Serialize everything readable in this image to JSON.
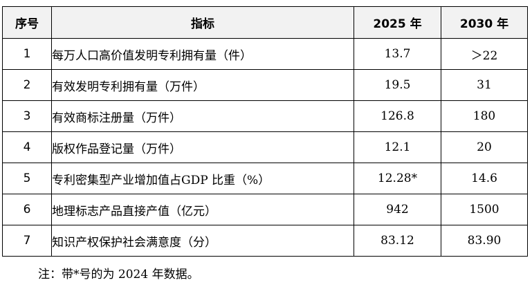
{
  "table": {
    "headers": {
      "no": "序号",
      "indicator": "指标",
      "y2025": "2025 年",
      "y2030": "2030 年"
    },
    "rows": [
      {
        "no": "1",
        "indicator": "每万人口高价值发明专利拥有量（件）",
        "y2025": "13.7",
        "y2030": "＞22"
      },
      {
        "no": "2",
        "indicator": "有效发明专利拥有量（万件）",
        "y2025": "19.5",
        "y2030": "31"
      },
      {
        "no": "3",
        "indicator": "有效商标注册量（万件）",
        "y2025": "126.8",
        "y2030": "180"
      },
      {
        "no": "4",
        "indicator": "版权作品登记量（万件）",
        "y2025": "12.1",
        "y2030": "20"
      },
      {
        "no": "5",
        "indicator": "专利密集型产业增加值占GDP 比重（%）",
        "y2025": "12.28*",
        "y2030": "14.6"
      },
      {
        "no": "6",
        "indicator": "地理标志产品直接产值（亿元）",
        "y2025": "942",
        "y2030": "1500"
      },
      {
        "no": "7",
        "indicator": "知识产权保护社会满意度（分）",
        "y2025": "83.12",
        "y2030": "83.90"
      }
    ]
  },
  "note": "注：带*号的为 2024 年数据。"
}
